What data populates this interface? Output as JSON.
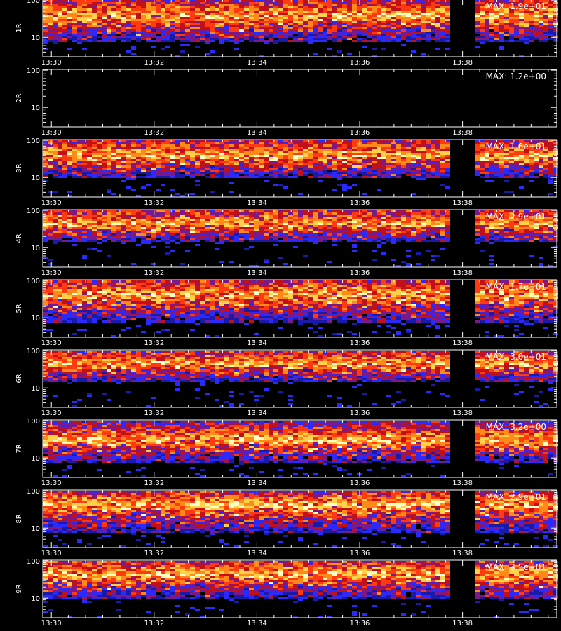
{
  "colors": {
    "background": "#000000",
    "frame": "#ffffff",
    "colormap": [
      "#000000",
      "#1a1aa8",
      "#2a2aff",
      "#7a1a8a",
      "#c0101a",
      "#ff3a10",
      "#ff8a1a",
      "#ffd24a",
      "#ffffc8"
    ]
  },
  "chart_data": [
    {
      "type": "heatmap",
      "panel_label": "1R",
      "max_label": "MAX: 1.9e+01",
      "max_value": 19,
      "yticks": [
        "100",
        "10"
      ],
      "yscale": "log",
      "ylim": [
        3,
        105
      ],
      "xticks": [
        "13:30",
        "13:32",
        "13:34",
        "13:36",
        "13:38"
      ],
      "xlim": [
        "13:29:50",
        "13:39:50"
      ],
      "data_gap": [
        "13:37:50",
        "13:38:10"
      ],
      "band_center": 45,
      "band_low": 8,
      "empty": false
    },
    {
      "type": "heatmap",
      "panel_label": "2R",
      "max_label": "MAX: 1.2e+00",
      "max_value": 1.2,
      "yticks": [
        "100",
        "10"
      ],
      "yscale": "log",
      "ylim": [
        3,
        105
      ],
      "xticks": [
        "13:30",
        "13:32",
        "13:34",
        "13:36",
        "13:38"
      ],
      "xlim": [
        "13:29:50",
        "13:39:50"
      ],
      "data_gap": [
        "13:37:50",
        "13:38:10"
      ],
      "band_center": 45,
      "band_low": 8,
      "empty": true
    },
    {
      "type": "heatmap",
      "panel_label": "3R",
      "max_label": "MAX: 1.6e+01",
      "max_value": 16,
      "yticks": [
        "100",
        "10"
      ],
      "yscale": "log",
      "ylim": [
        3,
        105
      ],
      "xticks": [
        "13:30",
        "13:32",
        "13:34",
        "13:36",
        "13:38"
      ],
      "xlim": [
        "13:29:50",
        "13:39:50"
      ],
      "data_gap": [
        "13:37:50",
        "13:38:10"
      ],
      "band_center": 45,
      "band_low": 10,
      "empty": false
    },
    {
      "type": "heatmap",
      "panel_label": "4R",
      "max_label": "MAX: 2.9e+01",
      "max_value": 29,
      "yticks": [
        "100",
        "10"
      ],
      "yscale": "log",
      "ylim": [
        3,
        105
      ],
      "xticks": [
        "13:30",
        "13:32",
        "13:34",
        "13:36",
        "13:38"
      ],
      "xlim": [
        "13:29:50",
        "13:39:50"
      ],
      "data_gap": [
        "13:37:50",
        "13:38:10"
      ],
      "band_center": 50,
      "band_low": 15,
      "empty": false
    },
    {
      "type": "heatmap",
      "panel_label": "5R",
      "max_label": "MAX: 1.7e+01",
      "max_value": 17,
      "yticks": [
        "100",
        "10"
      ],
      "yscale": "log",
      "ylim": [
        3,
        105
      ],
      "xticks": [
        "13:30",
        "13:32",
        "13:34",
        "13:36",
        "13:38"
      ],
      "xlim": [
        "13:29:50",
        "13:39:50"
      ],
      "data_gap": [
        "13:37:50",
        "13:38:10"
      ],
      "band_center": 50,
      "band_low": 8,
      "empty": false
    },
    {
      "type": "heatmap",
      "panel_label": "6R",
      "max_label": "MAX: 3.0e+01",
      "max_value": 30,
      "yticks": [
        "100",
        "10"
      ],
      "yscale": "log",
      "ylim": [
        3,
        105
      ],
      "xticks": [
        "13:30",
        "13:32",
        "13:34",
        "13:36",
        "13:38"
      ],
      "xlim": [
        "13:29:50",
        "13:39:50"
      ],
      "data_gap": [
        "13:37:50",
        "13:38:10"
      ],
      "band_center": 50,
      "band_low": 15,
      "empty": false
    },
    {
      "type": "heatmap",
      "panel_label": "7R",
      "max_label": "MAX: 3.2e+00",
      "max_value": 3.2,
      "yticks": [
        "100",
        "10"
      ],
      "yscale": "log",
      "ylim": [
        3,
        105
      ],
      "xticks": [
        "13:30",
        "13:32",
        "13:34",
        "13:36",
        "13:38"
      ],
      "xlim": [
        "13:29:50",
        "13:39:50"
      ],
      "data_gap": [
        "13:37:50",
        "13:38:10"
      ],
      "band_center": 35,
      "band_low": 8,
      "empty": false
    },
    {
      "type": "heatmap",
      "panel_label": "8R",
      "max_label": "MAX: 2.9e+01",
      "max_value": 29,
      "yticks": [
        "100",
        "10"
      ],
      "yscale": "log",
      "ylim": [
        3,
        105
      ],
      "xticks": [
        "13:30",
        "13:32",
        "13:34",
        "13:36",
        "13:38"
      ],
      "xlim": [
        "13:29:50",
        "13:39:50"
      ],
      "data_gap": [
        "13:37:50",
        "13:38:10"
      ],
      "band_center": 50,
      "band_low": 8,
      "empty": false
    },
    {
      "type": "heatmap",
      "panel_label": "9R",
      "max_label": "MAX: 3.5e+01",
      "max_value": 35,
      "yticks": [
        "100",
        "10"
      ],
      "yscale": "log",
      "ylim": [
        3,
        105
      ],
      "xticks": [
        "13:30",
        "13:32",
        "13:34",
        "13:36",
        "13:38"
      ],
      "xlim": [
        "13:29:50",
        "13:39:50"
      ],
      "data_gap": [
        "13:37:50",
        "13:38:10"
      ],
      "band_center": 50,
      "band_low": 10,
      "empty": false
    }
  ]
}
